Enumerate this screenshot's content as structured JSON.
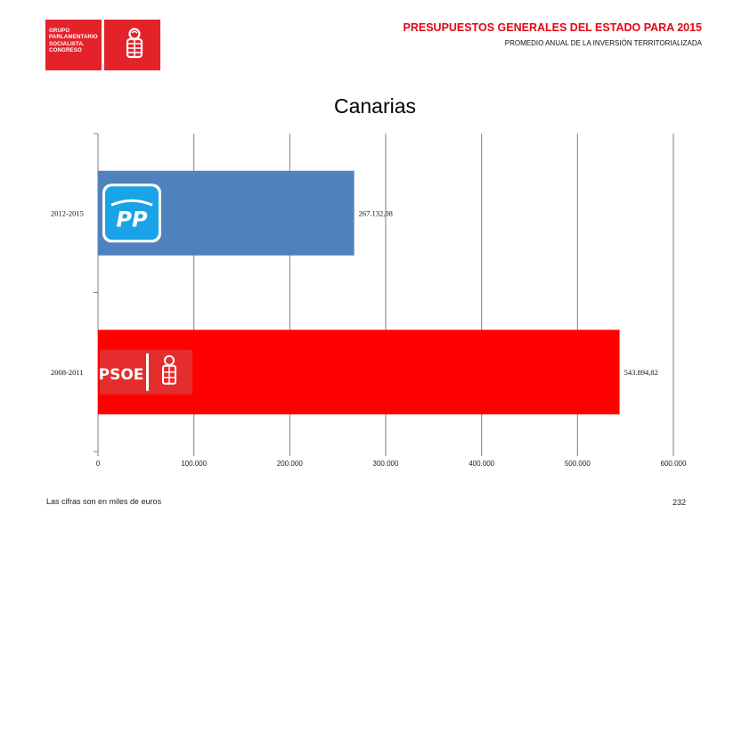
{
  "header": {
    "logo_text": [
      "GRUPO",
      "PARLAMENTARIO",
      "SOCIALISTA.",
      "CONGRESO"
    ],
    "title": "PRESUPUESTOS GENERALES DEL ESTADO PARA 2015",
    "subtitle": "PROMEDIO ANUAL DE LA INVERSIÓN TERRITORIALIZADA",
    "title_color": "#e30613",
    "logo_color": "#e3222a"
  },
  "chart_data": {
    "type": "bar",
    "orientation": "horizontal",
    "title": "Canarias",
    "categories": [
      "2012-2015",
      "2008-2011"
    ],
    "values": [
      267132.08,
      543894.82
    ],
    "value_labels": [
      "267.132,08",
      "543.894,82"
    ],
    "colors": [
      "#4f81bd",
      "#ff0000"
    ],
    "bar_logos": [
      "PP",
      "PSOE"
    ],
    "xlim": [
      0,
      600000
    ],
    "xticks": [
      0,
      100000,
      200000,
      300000,
      400000,
      500000,
      600000
    ],
    "xtick_labels": [
      "0",
      "100.000",
      "200.000",
      "300.000",
      "400.000",
      "500.000",
      "600.000"
    ],
    "grid": true,
    "legend": "none",
    "xlabel": "",
    "ylabel": ""
  },
  "footer": {
    "note": "Las cifras son en miles de euros",
    "page_number": "232"
  }
}
